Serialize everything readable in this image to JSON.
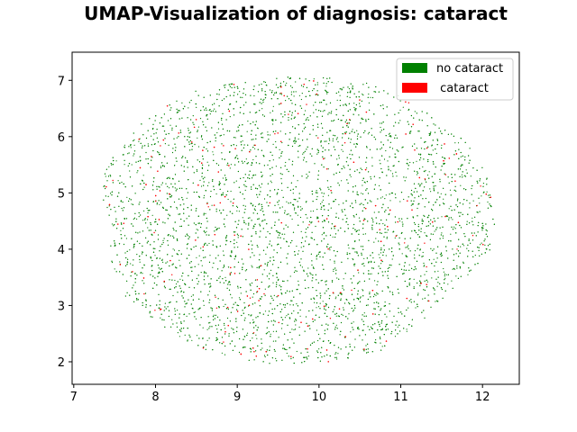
{
  "chart_data": {
    "type": "scatter",
    "title": "UMAP-Visualization of diagnosis: cataract",
    "xlabel": "",
    "ylabel": "",
    "xlim": [
      6.98,
      12.45
    ],
    "ylim": [
      1.6,
      7.5
    ],
    "x_ticks": [
      "7",
      "8",
      "9",
      "10",
      "11",
      "12"
    ],
    "y_ticks": [
      "2",
      "3",
      "4",
      "5",
      "6",
      "7"
    ],
    "grid": false,
    "legend_position": "top-right",
    "cloud": {
      "center_x": 9.7,
      "center_y": 4.55,
      "radius_x": 2.45,
      "radius_y": 2.6,
      "approx_points": 7000
    },
    "series": [
      {
        "name": "no cataract",
        "color": "#008000",
        "approx_count": 6700
      },
      {
        "name": " cataract",
        "color": "#ff0000",
        "approx_count": 300
      }
    ]
  }
}
